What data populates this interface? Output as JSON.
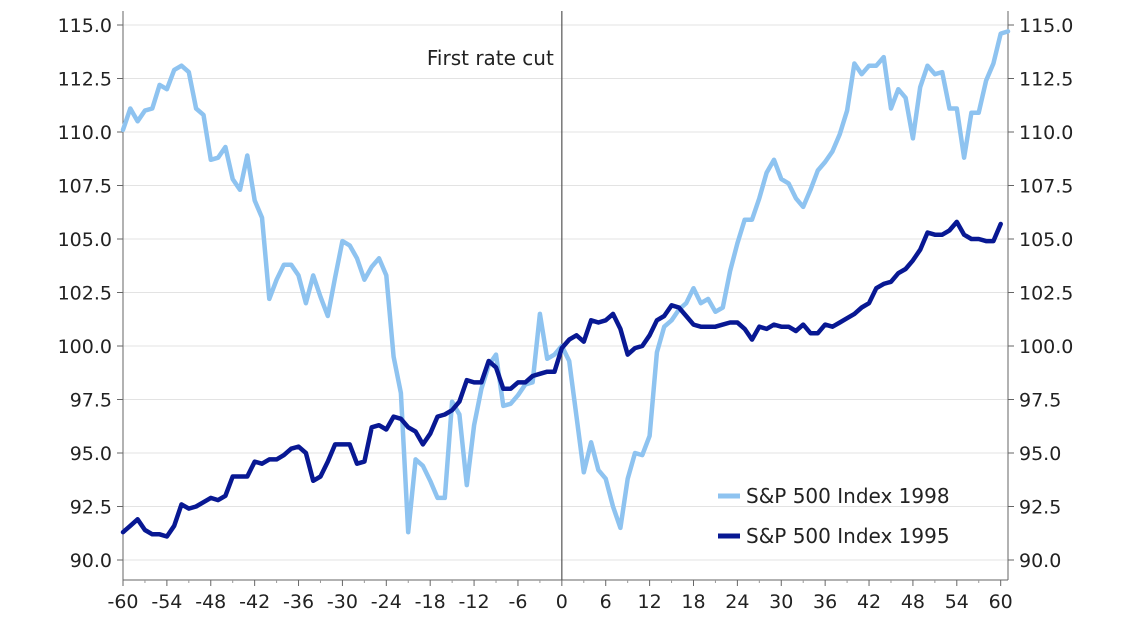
{
  "chart_data": {
    "type": "line",
    "title": "",
    "xlabel": "",
    "ylabel": "",
    "xlim": [
      -60,
      61
    ],
    "ylim": [
      90,
      115
    ],
    "x_ticks": [
      -60,
      -54,
      -48,
      -42,
      -36,
      -30,
      -24,
      -18,
      -12,
      -6,
      0,
      6,
      12,
      18,
      24,
      30,
      36,
      42,
      48,
      54,
      60
    ],
    "x_tick_labels": [
      "-60",
      "-54",
      "-48",
      "-42",
      "-36",
      "-30",
      "-24",
      "-18",
      "-12",
      "-6",
      "0",
      "6",
      "12",
      "18",
      "24",
      "30",
      "36",
      "42",
      "48",
      "54",
      "60"
    ],
    "y_ticks": [
      90,
      92.5,
      95,
      97.5,
      100,
      102.5,
      105,
      107.5,
      110,
      112.5,
      115
    ],
    "y_tick_labels": [
      "90.0",
      "92.5",
      "95.0",
      "97.5",
      "100.0",
      "102.5",
      "105.0",
      "107.5",
      "110.0",
      "112.5",
      "115.0"
    ],
    "grid": "horizontal",
    "legend_position": "bottom-right",
    "annotation": {
      "text": "First rate cut",
      "x": 0
    },
    "series": [
      {
        "name": "S&P 500 Index 1998",
        "color": "#8ec3f0",
        "points": [
          [
            -60,
            110.1
          ],
          [
            -59,
            111.1
          ],
          [
            -58,
            110.5
          ],
          [
            -57,
            111.0
          ],
          [
            -56,
            111.1
          ],
          [
            -55,
            112.2
          ],
          [
            -54,
            112.0
          ],
          [
            -53,
            112.9
          ],
          [
            -52,
            113.1
          ],
          [
            -51,
            112.8
          ],
          [
            -50,
            111.1
          ],
          [
            -49,
            110.8
          ],
          [
            -48,
            108.7
          ],
          [
            -47,
            108.8
          ],
          [
            -46,
            109.3
          ],
          [
            -45,
            107.8
          ],
          [
            -44,
            107.3
          ],
          [
            -43,
            108.9
          ],
          [
            -42,
            106.8
          ],
          [
            -41,
            106.0
          ],
          [
            -40,
            102.2
          ],
          [
            -39,
            103.1
          ],
          [
            -38,
            103.8
          ],
          [
            -37,
            103.8
          ],
          [
            -36,
            103.3
          ],
          [
            -35,
            102.0
          ],
          [
            -34,
            103.3
          ],
          [
            -33,
            102.3
          ],
          [
            -32,
            101.4
          ],
          [
            -31,
            103.2
          ],
          [
            -30,
            104.9
          ],
          [
            -29,
            104.7
          ],
          [
            -28,
            104.1
          ],
          [
            -27,
            103.1
          ],
          [
            -26,
            103.7
          ],
          [
            -25,
            104.1
          ],
          [
            -24,
            103.3
          ],
          [
            -23,
            99.5
          ],
          [
            -22,
            97.8
          ],
          [
            -21,
            91.3
          ],
          [
            -20,
            94.7
          ],
          [
            -19,
            94.4
          ],
          [
            -18,
            93.7
          ],
          [
            -17,
            92.9
          ],
          [
            -16,
            92.9
          ],
          [
            -15,
            97.4
          ],
          [
            -14,
            96.8
          ],
          [
            -13,
            93.5
          ],
          [
            -12,
            96.3
          ],
          [
            -11,
            98.0
          ],
          [
            -10,
            99.1
          ],
          [
            -9,
            99.6
          ],
          [
            -8,
            97.2
          ],
          [
            -7,
            97.3
          ],
          [
            -6,
            97.7
          ],
          [
            -5,
            98.2
          ],
          [
            -4,
            98.3
          ],
          [
            -3,
            101.5
          ],
          [
            -2,
            99.4
          ],
          [
            -1,
            99.6
          ],
          [
            0,
            100.0
          ],
          [
            1,
            99.3
          ],
          [
            2,
            96.7
          ],
          [
            3,
            94.1
          ],
          [
            4,
            95.5
          ],
          [
            5,
            94.2
          ],
          [
            6,
            93.8
          ],
          [
            7,
            92.5
          ],
          [
            8,
            91.5
          ],
          [
            9,
            93.8
          ],
          [
            10,
            95.0
          ],
          [
            11,
            94.9
          ],
          [
            12,
            95.8
          ],
          [
            13,
            99.7
          ],
          [
            14,
            100.9
          ],
          [
            15,
            101.2
          ],
          [
            16,
            101.7
          ],
          [
            17,
            102.0
          ],
          [
            18,
            102.7
          ],
          [
            19,
            102.0
          ],
          [
            20,
            102.2
          ],
          [
            21,
            101.6
          ],
          [
            22,
            101.8
          ],
          [
            23,
            103.5
          ],
          [
            24,
            104.8
          ],
          [
            25,
            105.9
          ],
          [
            26,
            105.9
          ],
          [
            27,
            106.9
          ],
          [
            28,
            108.1
          ],
          [
            29,
            108.7
          ],
          [
            30,
            107.8
          ],
          [
            31,
            107.6
          ],
          [
            32,
            106.9
          ],
          [
            33,
            106.5
          ],
          [
            34,
            107.3
          ],
          [
            35,
            108.2
          ],
          [
            36,
            108.6
          ],
          [
            37,
            109.1
          ],
          [
            38,
            109.9
          ],
          [
            39,
            111.0
          ],
          [
            40,
            113.2
          ],
          [
            41,
            112.7
          ],
          [
            42,
            113.1
          ],
          [
            43,
            113.1
          ],
          [
            44,
            113.5
          ],
          [
            45,
            111.1
          ],
          [
            46,
            112.0
          ],
          [
            47,
            111.6
          ],
          [
            48,
            109.7
          ],
          [
            49,
            112.1
          ],
          [
            50,
            113.1
          ],
          [
            51,
            112.7
          ],
          [
            52,
            112.8
          ],
          [
            53,
            111.1
          ],
          [
            54,
            111.1
          ],
          [
            55,
            108.8
          ],
          [
            56,
            110.9
          ],
          [
            57,
            110.9
          ],
          [
            58,
            112.4
          ],
          [
            59,
            113.2
          ],
          [
            60,
            114.6
          ],
          [
            61,
            114.7
          ]
        ]
      },
      {
        "name": "S&P 500 Index 1995",
        "color": "#081893",
        "points": [
          [
            -60,
            91.3
          ],
          [
            -59,
            91.6
          ],
          [
            -58,
            91.9
          ],
          [
            -57,
            91.4
          ],
          [
            -56,
            91.2
          ],
          [
            -55,
            91.2
          ],
          [
            -54,
            91.1
          ],
          [
            -53,
            91.6
          ],
          [
            -52,
            92.6
          ],
          [
            -51,
            92.4
          ],
          [
            -50,
            92.5
          ],
          [
            -49,
            92.7
          ],
          [
            -48,
            92.9
          ],
          [
            -47,
            92.8
          ],
          [
            -46,
            93.0
          ],
          [
            -45,
            93.9
          ],
          [
            -44,
            93.9
          ],
          [
            -43,
            93.9
          ],
          [
            -42,
            94.6
          ],
          [
            -41,
            94.5
          ],
          [
            -40,
            94.7
          ],
          [
            -39,
            94.7
          ],
          [
            -38,
            94.9
          ],
          [
            -37,
            95.2
          ],
          [
            -36,
            95.3
          ],
          [
            -35,
            95.0
          ],
          [
            -34,
            93.7
          ],
          [
            -33,
            93.9
          ],
          [
            -32,
            94.6
          ],
          [
            -31,
            95.4
          ],
          [
            -30,
            95.4
          ],
          [
            -29,
            95.4
          ],
          [
            -28,
            94.5
          ],
          [
            -27,
            94.6
          ],
          [
            -26,
            96.2
          ],
          [
            -25,
            96.3
          ],
          [
            -24,
            96.1
          ],
          [
            -23,
            96.7
          ],
          [
            -22,
            96.6
          ],
          [
            -21,
            96.2
          ],
          [
            -20,
            96.0
          ],
          [
            -19,
            95.4
          ],
          [
            -18,
            95.9
          ],
          [
            -17,
            96.7
          ],
          [
            -16,
            96.8
          ],
          [
            -15,
            97.0
          ],
          [
            -14,
            97.4
          ],
          [
            -13,
            98.4
          ],
          [
            -12,
            98.3
          ],
          [
            -11,
            98.3
          ],
          [
            -10,
            99.3
          ],
          [
            -9,
            99.0
          ],
          [
            -8,
            98.0
          ],
          [
            -7,
            98.0
          ],
          [
            -6,
            98.3
          ],
          [
            -5,
            98.3
          ],
          [
            -4,
            98.6
          ],
          [
            -3,
            98.7
          ],
          [
            -2,
            98.8
          ],
          [
            -1,
            98.8
          ],
          [
            0,
            99.9
          ],
          [
            1,
            100.3
          ],
          [
            2,
            100.5
          ],
          [
            3,
            100.2
          ],
          [
            4,
            101.2
          ],
          [
            5,
            101.1
          ],
          [
            6,
            101.2
          ],
          [
            7,
            101.5
          ],
          [
            8,
            100.8
          ],
          [
            9,
            99.6
          ],
          [
            10,
            99.9
          ],
          [
            11,
            100.0
          ],
          [
            12,
            100.5
          ],
          [
            13,
            101.2
          ],
          [
            14,
            101.4
          ],
          [
            15,
            101.9
          ],
          [
            16,
            101.8
          ],
          [
            17,
            101.4
          ],
          [
            18,
            101.0
          ],
          [
            19,
            100.9
          ],
          [
            20,
            100.9
          ],
          [
            21,
            100.9
          ],
          [
            22,
            101.0
          ],
          [
            23,
            101.1
          ],
          [
            24,
            101.1
          ],
          [
            25,
            100.8
          ],
          [
            26,
            100.3
          ],
          [
            27,
            100.9
          ],
          [
            28,
            100.8
          ],
          [
            29,
            101.0
          ],
          [
            30,
            100.9
          ],
          [
            31,
            100.9
          ],
          [
            32,
            100.7
          ],
          [
            33,
            101.0
          ],
          [
            34,
            100.6
          ],
          [
            35,
            100.6
          ],
          [
            36,
            101.0
          ],
          [
            37,
            100.9
          ],
          [
            38,
            101.1
          ],
          [
            39,
            101.3
          ],
          [
            40,
            101.5
          ],
          [
            41,
            101.8
          ],
          [
            42,
            102.0
          ],
          [
            43,
            102.7
          ],
          [
            44,
            102.9
          ],
          [
            45,
            103.0
          ],
          [
            46,
            103.4
          ],
          [
            47,
            103.6
          ],
          [
            48,
            104.0
          ],
          [
            49,
            104.5
          ],
          [
            50,
            105.3
          ],
          [
            51,
            105.2
          ],
          [
            52,
            105.2
          ],
          [
            53,
            105.4
          ],
          [
            54,
            105.8
          ],
          [
            55,
            105.2
          ],
          [
            56,
            105.0
          ],
          [
            57,
            105.0
          ],
          [
            58,
            104.9
          ],
          [
            59,
            104.9
          ],
          [
            60,
            105.7
          ]
        ]
      }
    ]
  }
}
